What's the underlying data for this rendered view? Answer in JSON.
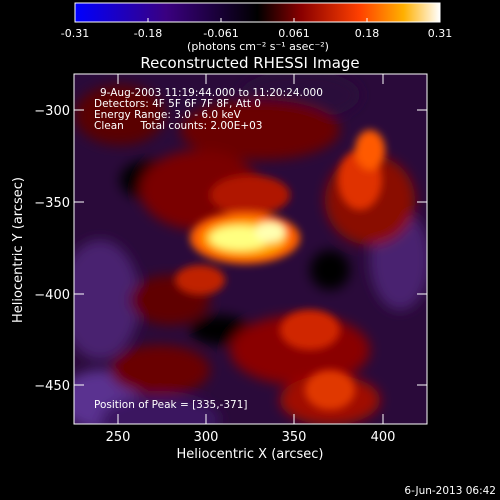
{
  "colorbar": {
    "tick_labels": [
      "-0.31",
      "-0.18",
      "-0.061",
      "0.061",
      "0.18",
      "0.31"
    ],
    "unit_label": "(photons cm⁻² s⁻¹ asec⁻²)",
    "colors": [
      "#0000ff",
      "#3a0080",
      "#000000",
      "#8a0000",
      "#ff4000",
      "#ffb000",
      "#ffffff"
    ]
  },
  "title": "Reconstructed RHESSI Image",
  "info_lines": [
    "9-Aug-2003 11:19:44.000 to 11:20:24.000",
    "Detectors: 4F 5F 6F 7F 8F, Att 0",
    "Energy Range: 3.0 - 6.0 keV",
    "Clean     Total counts: 2.00E+03"
  ],
  "peak_label": "Position of Peak = [335,-371]",
  "x_axis": {
    "label": "Heliocentric X (arcsec)",
    "ticks": [
      "250",
      "300",
      "350",
      "400"
    ]
  },
  "y_axis": {
    "label": "Heliocentric Y (arcsec)",
    "ticks": [
      "−300",
      "−350",
      "−400",
      "−450"
    ]
  },
  "footer_date": "6-Jun-2013 06:42"
}
